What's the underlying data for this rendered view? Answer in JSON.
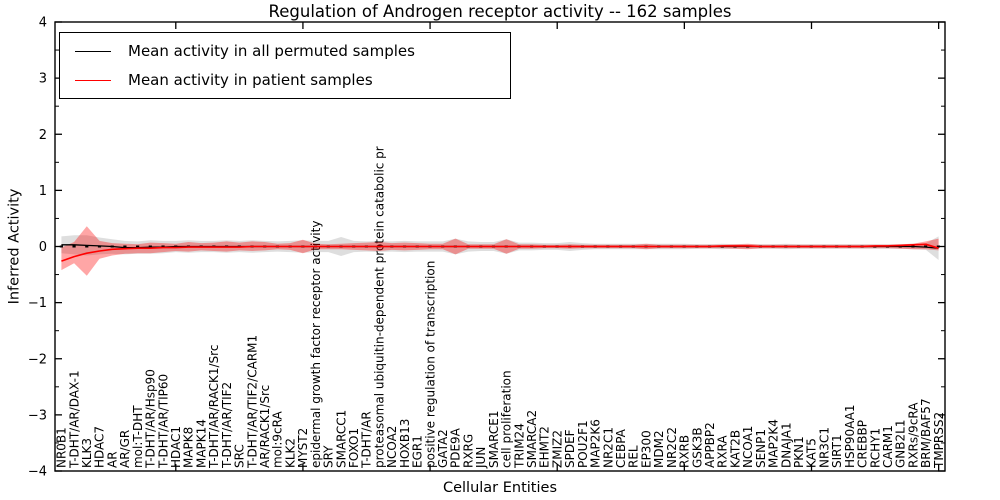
{
  "figure": {
    "title": "Regulation of Androgen receptor activity -- 162 samples"
  },
  "legend": {
    "items": [
      {
        "label": "Mean activity in all permuted samples",
        "color": "#000000"
      },
      {
        "label": "Mean activity in patient samples",
        "color": "#ff0000"
      }
    ]
  },
  "chart_data": {
    "type": "line",
    "title": "Regulation of Androgen receptor activity -- 162 samples",
    "xlabel": "Cellular Entities",
    "ylabel": "Inferred Activity",
    "ylim": [
      -4,
      4
    ],
    "yticks": [
      4,
      3,
      2,
      1,
      0,
      -1,
      -2,
      -3,
      -4
    ],
    "y_minor_step": 0.5,
    "x_major_tick_indices": [
      9,
      19,
      29,
      39,
      49,
      59,
      69
    ],
    "grid": false,
    "legend_position": "upper left",
    "zero_line_style": "dotted",
    "categories": [
      "NR0B1",
      "T-DHT/AR/DAX-1",
      "KLK3",
      "HDAC7",
      "AR",
      "AR/GR",
      "mol:T-DHT",
      "T-DHT/AR/Hsp90",
      "T-DHT/AR/TIP60",
      "HDAC1",
      "MAPK8",
      "MAPK14",
      "T-DHT/AR/RACK1/Src",
      "T-DHT/AR/TIF2",
      "SRC",
      "T-DHT/AR/TIF2/CARM1",
      "AR/RACK1/Src",
      "mol:9cRA",
      "KLK2",
      "MYST2",
      "epidermal growth factor receptor activity",
      "SRY",
      "SMARCC1",
      "FOXO1",
      "T-DHT/AR",
      "proteasomal ubiquitin-dependent protein catabolic pr",
      "NCOA2",
      "HOXB13",
      "EGR1",
      "positive regulation of transcription",
      "GATA2",
      "PDE9A",
      "RXRG",
      "JUN",
      "SMARCE1",
      "cell proliferation",
      "TRIM24",
      "SMARCA2",
      "EHMT2",
      "ZMIZ2",
      "SPDEF",
      "POU2F1",
      "MAP2K6",
      "NR2C1",
      "CEBPA",
      "REL",
      "EP300",
      "MDM2",
      "NR2C2",
      "RXRB",
      "GSK3B",
      "APPBP2",
      "RXRA",
      "KAT2B",
      "NCOA1",
      "SENP1",
      "MAP2K4",
      "DNAJA1",
      "PKN1",
      "KAT5",
      "NR3C1",
      "SIRT1",
      "HSP90AA1",
      "CREBBP",
      "RCHY1",
      "CARM1",
      "GNB2L1",
      "RXRs/9cRA",
      "BRM/BAF57",
      "TMPRSS2"
    ],
    "series": [
      {
        "name": "Mean activity in all permuted samples",
        "color": "#000000",
        "values": [
          0.03,
          0.03,
          0.02,
          0.01,
          0.0,
          -0.02,
          -0.02,
          -0.01,
          -0.01,
          0.0,
          0.0,
          0.0,
          0.0,
          0.0,
          0.0,
          0.0,
          0.0,
          0.0,
          0.0,
          0.0,
          0.0,
          0.0,
          0.0,
          0.0,
          0.0,
          0.0,
          0.0,
          0.0,
          0.0,
          0.0,
          0.0,
          0.0,
          0.0,
          0.0,
          0.0,
          0.0,
          0.0,
          0.0,
          0.0,
          0.0,
          0.0,
          0.0,
          0.0,
          0.0,
          0.0,
          0.0,
          0.0,
          0.0,
          0.0,
          0.0,
          0.0,
          0.0,
          0.0,
          0.0,
          0.0,
          0.0,
          0.0,
          0.0,
          0.0,
          0.0,
          0.0,
          0.0,
          0.0,
          0.0,
          0.0,
          0.0,
          0.0,
          0.0,
          -0.01,
          -0.03
        ]
      },
      {
        "name": "Mean activity in patient samples",
        "color": "#ff0000",
        "values": [
          -0.26,
          -0.18,
          -0.12,
          -0.08,
          -0.05,
          -0.04,
          -0.03,
          -0.03,
          -0.02,
          -0.02,
          -0.01,
          -0.01,
          -0.01,
          -0.01,
          -0.01,
          0.0,
          0.0,
          0.0,
          0.0,
          0.0,
          0.0,
          0.0,
          0.0,
          0.0,
          0.0,
          0.0,
          0.0,
          0.0,
          0.0,
          0.0,
          0.0,
          0.0,
          0.0,
          0.0,
          0.0,
          0.0,
          0.0,
          0.0,
          0.0,
          0.0,
          0.0,
          0.0,
          0.0,
          0.0,
          0.0,
          0.0,
          0.0,
          0.0,
          0.0,
          0.0,
          0.0,
          0.0,
          0.01,
          0.01,
          0.01,
          0.0,
          0.0,
          0.0,
          0.0,
          0.0,
          0.0,
          0.0,
          0.0,
          0.0,
          0.01,
          0.01,
          0.02,
          0.03,
          0.04,
          -0.03
        ]
      }
    ],
    "bands": [
      {
        "name": "permuted std band",
        "color": "#000000",
        "opacity": 0.13,
        "upper": [
          0.18,
          0.2,
          0.2,
          0.16,
          0.13,
          0.1,
          0.09,
          0.11,
          0.1,
          0.1,
          0.11,
          0.1,
          0.1,
          0.11,
          0.1,
          0.11,
          0.1,
          0.09,
          0.1,
          0.11,
          0.1,
          0.1,
          0.17,
          0.1,
          0.09,
          0.1,
          0.09,
          0.1,
          0.09,
          0.09,
          0.09,
          0.14,
          0.09,
          0.08,
          0.08,
          0.13,
          0.07,
          0.07,
          0.06,
          0.06,
          0.08,
          0.06,
          0.05,
          0.05,
          0.05,
          0.05,
          0.05,
          0.05,
          0.05,
          0.05,
          0.04,
          0.04,
          0.05,
          0.04,
          0.04,
          0.04,
          0.04,
          0.05,
          0.04,
          0.04,
          0.04,
          0.04,
          0.04,
          0.04,
          0.04,
          0.04,
          0.04,
          0.05,
          0.06,
          0.18
        ],
        "lower": [
          -0.12,
          -0.14,
          -0.16,
          -0.14,
          -0.13,
          -0.14,
          -0.13,
          -0.13,
          -0.12,
          -0.1,
          -0.11,
          -0.1,
          -0.1,
          -0.11,
          -0.1,
          -0.11,
          -0.1,
          -0.09,
          -0.1,
          -0.11,
          -0.1,
          -0.1,
          -0.17,
          -0.1,
          -0.09,
          -0.1,
          -0.09,
          -0.1,
          -0.09,
          -0.09,
          -0.09,
          -0.14,
          -0.09,
          -0.08,
          -0.08,
          -0.13,
          -0.07,
          -0.07,
          -0.06,
          -0.06,
          -0.08,
          -0.06,
          -0.05,
          -0.05,
          -0.05,
          -0.05,
          -0.05,
          -0.05,
          -0.05,
          -0.05,
          -0.04,
          -0.04,
          -0.05,
          -0.04,
          -0.04,
          -0.04,
          -0.04,
          -0.05,
          -0.04,
          -0.04,
          -0.04,
          -0.04,
          -0.04,
          -0.04,
          -0.04,
          -0.04,
          -0.04,
          -0.05,
          -0.06,
          -0.24
        ]
      },
      {
        "name": "patient std band",
        "color": "#ff0000",
        "opacity": 0.35,
        "upper": [
          -0.02,
          0.08,
          0.36,
          0.1,
          0.06,
          0.05,
          0.04,
          0.07,
          0.06,
          0.05,
          0.08,
          0.06,
          0.07,
          0.09,
          0.07,
          0.09,
          0.08,
          0.05,
          0.06,
          0.12,
          0.05,
          0.04,
          0.05,
          0.06,
          0.07,
          0.08,
          0.06,
          0.07,
          0.06,
          0.05,
          0.05,
          0.14,
          0.04,
          0.04,
          0.04,
          0.13,
          0.04,
          0.04,
          0.03,
          0.03,
          0.04,
          0.03,
          0.03,
          0.03,
          0.03,
          0.03,
          0.05,
          0.03,
          0.03,
          0.03,
          0.03,
          0.03,
          0.03,
          0.04,
          0.05,
          0.03,
          0.03,
          0.03,
          0.03,
          0.03,
          0.03,
          0.03,
          0.03,
          0.03,
          0.03,
          0.03,
          0.04,
          0.05,
          0.09,
          0.14
        ],
        "lower": [
          -0.42,
          -0.3,
          -0.52,
          -0.22,
          -0.16,
          -0.13,
          -0.12,
          -0.12,
          -0.1,
          -0.08,
          -0.09,
          -0.07,
          -0.08,
          -0.09,
          -0.07,
          -0.08,
          -0.07,
          -0.05,
          -0.06,
          -0.12,
          -0.05,
          -0.05,
          -0.05,
          -0.06,
          -0.07,
          -0.08,
          -0.06,
          -0.07,
          -0.06,
          -0.05,
          -0.05,
          -0.14,
          -0.04,
          -0.04,
          -0.04,
          -0.13,
          -0.04,
          -0.04,
          -0.03,
          -0.03,
          -0.04,
          -0.03,
          -0.03,
          -0.03,
          -0.03,
          -0.03,
          -0.05,
          -0.03,
          -0.03,
          -0.03,
          -0.03,
          -0.03,
          -0.03,
          -0.04,
          -0.05,
          -0.03,
          -0.03,
          -0.03,
          -0.03,
          -0.03,
          -0.03,
          -0.03,
          -0.03,
          -0.03,
          -0.03,
          -0.03,
          -0.04,
          -0.05,
          -0.05,
          -0.07
        ]
      }
    ]
  }
}
